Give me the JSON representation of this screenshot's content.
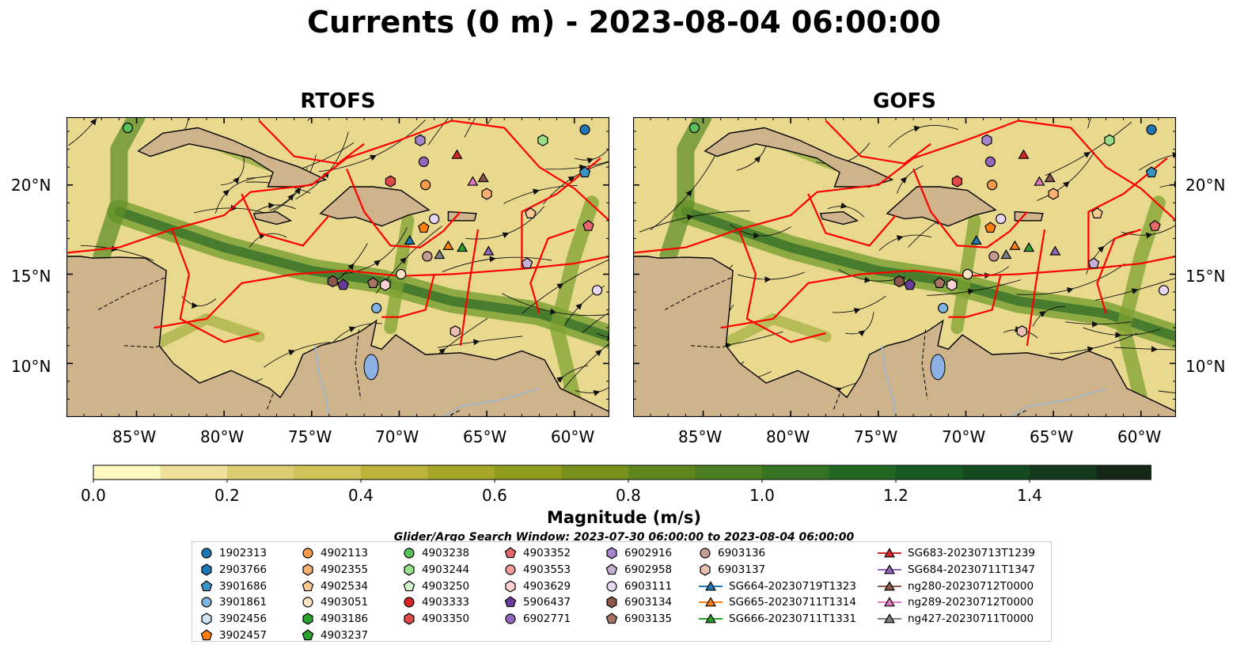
{
  "title": "Currents (0 m) - 2023-08-04 06:00:00",
  "panels": [
    {
      "title": "RTOFS"
    },
    {
      "title": "GOFS"
    }
  ],
  "lat_labels": [
    "20°N",
    "15°N",
    "10°N"
  ],
  "lon_labels": [
    "85°W",
    "80°W",
    "75°W",
    "70°W",
    "65°W",
    "60°W"
  ],
  "colorbar": {
    "label": "Magnitude (m/s)",
    "ticks": [
      "0.0",
      "0.2",
      "0.4",
      "0.6",
      "0.8",
      "1.0",
      "1.2",
      "1.4"
    ],
    "colors": [
      "#fdf7c0",
      "#efe199",
      "#dccc72",
      "#cfc256",
      "#bcb43a",
      "#a6a729",
      "#8f9c1c",
      "#77911a",
      "#5f861c",
      "#4a7c20",
      "#357222",
      "#216722",
      "#155a22",
      "#154a20",
      "#15391c",
      "#152817"
    ]
  },
  "legend": {
    "title": "Glider/Argo Search Window: 2023-07-30 06:00:00 to 2023-08-04 06:00:00",
    "columns": [
      [
        {
          "label": "1902313",
          "marker": "circle",
          "color": "#1f77b4"
        },
        {
          "label": "2903766",
          "marker": "hexagon",
          "color": "#1f77b4"
        },
        {
          "label": "3901686",
          "marker": "pentagon",
          "color": "#3a93c3"
        },
        {
          "label": "3901861",
          "marker": "circle",
          "color": "#7fb2de"
        },
        {
          "label": "3902456",
          "marker": "hexagon",
          "color": "#cfe3f2"
        },
        {
          "label": "3902457",
          "marker": "pentagon",
          "color": "#ff7f0e"
        }
      ],
      [
        {
          "label": "4902113",
          "marker": "circle",
          "color": "#f39c4c"
        },
        {
          "label": "4902355",
          "marker": "hexagon",
          "color": "#f8b173"
        },
        {
          "label": "4902534",
          "marker": "pentagon",
          "color": "#fcc893"
        },
        {
          "label": "4903051",
          "marker": "circle",
          "color": "#fde2c3"
        },
        {
          "label": "4903186",
          "marker": "hexagon",
          "color": "#2ca02c"
        },
        {
          "label": "4903237",
          "marker": "pentagon",
          "color": "#2ca02c"
        }
      ],
      [
        {
          "label": "4903238",
          "marker": "circle",
          "color": "#5bbf5b"
        },
        {
          "label": "4903244",
          "marker": "hexagon",
          "color": "#98df8a"
        },
        {
          "label": "4903250",
          "marker": "pentagon",
          "color": "#d4f4cc"
        },
        {
          "label": "4903333",
          "marker": "circle",
          "color": "#d62728"
        },
        {
          "label": "4903350",
          "marker": "hexagon",
          "color": "#de4a4a"
        }
      ],
      [
        {
          "label": "4903352",
          "marker": "pentagon",
          "color": "#e3686a"
        },
        {
          "label": "4903553",
          "marker": "circle",
          "color": "#f29c9c"
        },
        {
          "label": "4903629",
          "marker": "hexagon",
          "color": "#fcd2d2"
        },
        {
          "label": "5906437",
          "marker": "pentagon",
          "color": "#6a3d9a"
        },
        {
          "label": "6902771",
          "marker": "circle",
          "color": "#9467bd"
        }
      ],
      [
        {
          "label": "6902916",
          "marker": "hexagon",
          "color": "#a685cf"
        },
        {
          "label": "6902958",
          "marker": "pentagon",
          "color": "#c5b0d5"
        },
        {
          "label": "6903111",
          "marker": "circle",
          "color": "#e6d8f0"
        },
        {
          "label": "6903134",
          "marker": "hexagon",
          "color": "#8c564b"
        },
        {
          "label": "6903135",
          "marker": "pentagon",
          "color": "#a87564"
        }
      ],
      [
        {
          "label": "6903136",
          "marker": "circle",
          "color": "#c49c94"
        },
        {
          "label": "6903137",
          "marker": "hexagon",
          "color": "#ebbfb4"
        },
        {
          "label": "SG664-20230719T1323",
          "marker": "triangle",
          "color": "#1f77b4"
        },
        {
          "label": "SG665-20230711T1314",
          "marker": "triangle",
          "color": "#ff7f0e"
        },
        {
          "label": "SG666-20230711T1331",
          "marker": "triangle",
          "color": "#2ca02c"
        }
      ],
      [
        {
          "label": "SG683-20230713T1239",
          "marker": "triangle",
          "color": "#d62728"
        },
        {
          "label": "SG684-20230711T1347",
          "marker": "triangle",
          "color": "#9467bd"
        },
        {
          "label": "ng280-20230712T0000",
          "marker": "triangle",
          "color": "#8c564b"
        },
        {
          "label": "ng289-20230712T0000",
          "marker": "triangle",
          "color": "#e377c2"
        },
        {
          "label": "ng427-20230711T0000",
          "marker": "triangle",
          "color": "#7f7f7f"
        }
      ]
    ]
  },
  "map_extent": {
    "lon": [
      -89,
      -58
    ],
    "lat": [
      7,
      23.8
    ]
  },
  "observations": [
    {
      "id": "4903238",
      "lon": -85.5,
      "lat": 23.2
    },
    {
      "id": "1902313",
      "lon": -59.4,
      "lat": 23.1
    },
    {
      "id": "4903244",
      "lon": -61.8,
      "lat": 22.5
    },
    {
      "id": "6902916",
      "lon": -68.8,
      "lat": 22.5
    },
    {
      "id": "6902771",
      "lon": -68.6,
      "lat": 21.3
    },
    {
      "id": "4903350",
      "lon": -70.5,
      "lat": 20.2
    },
    {
      "id": "4902113",
      "lon": -68.5,
      "lat": 20.0
    },
    {
      "id": "4902355",
      "lon": -65.0,
      "lat": 19.5
    },
    {
      "id": "3901686",
      "lon": -59.4,
      "lat": 20.7
    },
    {
      "id": "6903111",
      "lon": -68.0,
      "lat": 18.1
    },
    {
      "id": "4902534",
      "lon": -62.5,
      "lat": 18.4
    },
    {
      "id": "4903352",
      "lon": -59.2,
      "lat": 17.7
    },
    {
      "id": "3902457",
      "lon": -68.6,
      "lat": 17.6
    },
    {
      "id": "6903136",
      "lon": -68.4,
      "lat": 16.0
    },
    {
      "id": "6902958",
      "lon": -62.7,
      "lat": 15.6
    },
    {
      "id": "4903051",
      "lon": -69.9,
      "lat": 15.0
    },
    {
      "id": "6903134",
      "lon": -73.8,
      "lat": 14.6
    },
    {
      "id": "5906437",
      "lon": -73.2,
      "lat": 14.4
    },
    {
      "id": "6903135",
      "lon": -71.5,
      "lat": 14.5
    },
    {
      "id": "4903629",
      "lon": -70.8,
      "lat": 14.4
    },
    {
      "id": "6903111",
      "lon": -58.7,
      "lat": 14.1
    },
    {
      "id": "3901861",
      "lon": -71.3,
      "lat": 13.1
    },
    {
      "id": "6903137",
      "lon": -66.8,
      "lat": 11.8
    },
    {
      "id": "SG664-20230719T1323",
      "lon": -69.4,
      "lat": 16.9
    },
    {
      "id": "SG665-20230711T1314",
      "lon": -67.2,
      "lat": 16.6
    },
    {
      "id": "SG666-20230711T1331",
      "lon": -66.4,
      "lat": 16.5
    },
    {
      "id": "SG683-20230713T1239",
      "lon": -66.7,
      "lat": 21.7
    },
    {
      "id": "SG684-20230711T1347",
      "lon": -64.9,
      "lat": 16.3
    },
    {
      "id": "ng280-20230712T0000",
      "lon": -65.2,
      "lat": 20.4
    },
    {
      "id": "ng289-20230712T0000",
      "lon": -65.8,
      "lat": 20.2
    },
    {
      "id": "ng427-20230711T0000",
      "lon": -67.7,
      "lat": 16.1
    }
  ]
}
